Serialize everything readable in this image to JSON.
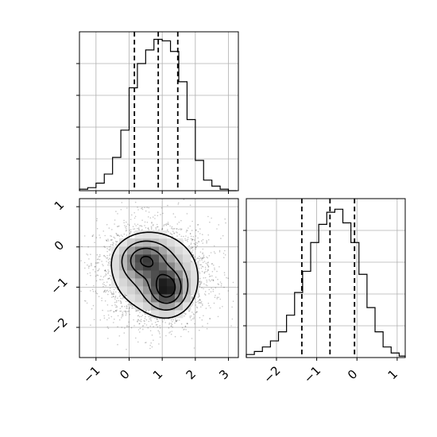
{
  "chart_data": [
    {
      "type": "histogram",
      "panel": "marginal-x",
      "xlim": [
        -1.5,
        3.3
      ],
      "ylim": [
        0,
        1.05
      ],
      "x_ticks": [
        -1,
        0,
        1,
        2,
        3
      ],
      "bin_edges": [
        -1.5,
        -1.25,
        -1.0,
        -0.75,
        -0.5,
        -0.25,
        0.0,
        0.25,
        0.5,
        0.75,
        1.0,
        1.25,
        1.5,
        1.75,
        2.0,
        2.25,
        2.5,
        2.75,
        3.0,
        3.25
      ],
      "counts": [
        0.01,
        0.02,
        0.05,
        0.11,
        0.22,
        0.4,
        0.68,
        0.84,
        0.93,
        1.0,
        0.99,
        0.92,
        0.72,
        0.47,
        0.2,
        0.07,
        0.03,
        0.01,
        0.0
      ],
      "quantiles": [
        0.16,
        0.88,
        1.47
      ],
      "grid": true
    },
    {
      "type": "heatmap",
      "panel": "joint",
      "xlim": [
        -1.5,
        3.3
      ],
      "ylim": [
        -2.75,
        1.2
      ],
      "x_ticks": [
        -1,
        0,
        1,
        2,
        3
      ],
      "y_ticks": [
        -2,
        -1,
        0,
        1
      ],
      "x_tick_labels": [
        "−1",
        "0",
        "1",
        "2",
        "3"
      ],
      "y_tick_labels": [
        "−2",
        "−1",
        "0",
        "1"
      ],
      "density_modes": [
        {
          "x": 0.45,
          "y": -0.3,
          "sx": 0.42,
          "sy": 0.28,
          "w": 0.75
        },
        {
          "x": 1.15,
          "y": -1.05,
          "sx": 0.35,
          "sy": 0.32,
          "w": 1.0
        },
        {
          "x": 0.8,
          "y": -0.65,
          "sx": 0.8,
          "sy": 0.6,
          "w": 0.55
        }
      ],
      "contour_levels": [
        0.12,
        0.3,
        0.55,
        0.8
      ],
      "grid": true
    },
    {
      "type": "histogram",
      "panel": "marginal-y",
      "xlim": [
        -2.75,
        1.2
      ],
      "ylim": [
        0,
        1.05
      ],
      "x_ticks": [
        -2,
        -1,
        0,
        1
      ],
      "x_tick_labels": [
        "−2",
        "−1",
        "0",
        "1"
      ],
      "bin_edges": [
        -2.75,
        -2.55,
        -2.35,
        -2.15,
        -1.95,
        -1.75,
        -1.55,
        -1.35,
        -1.15,
        -0.95,
        -0.75,
        -0.55,
        -0.35,
        -0.15,
        0.05,
        0.25,
        0.45,
        0.65,
        0.85,
        1.05,
        1.2
      ],
      "counts": [
        0.02,
        0.04,
        0.07,
        0.11,
        0.17,
        0.28,
        0.43,
        0.57,
        0.76,
        0.88,
        0.96,
        0.98,
        0.89,
        0.76,
        0.55,
        0.33,
        0.17,
        0.07,
        0.03,
        0.01
      ],
      "quantiles": [
        -1.37,
        -0.67,
        -0.06
      ],
      "grid": true
    }
  ]
}
